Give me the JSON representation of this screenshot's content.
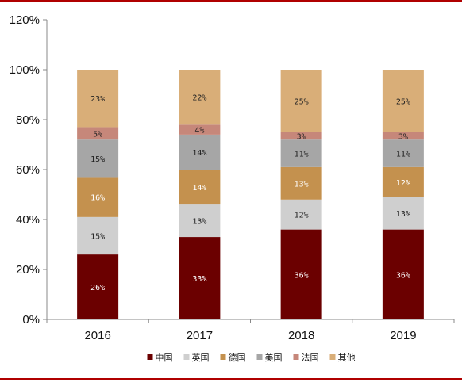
{
  "chart_data": {
    "type": "bar",
    "stacked": true,
    "categories": [
      "2016",
      "2017",
      "2018",
      "2019"
    ],
    "series": [
      {
        "name": "中国",
        "color": "#6b0000",
        "label_color": "#ffffff",
        "values": [
          26,
          33,
          36,
          36
        ]
      },
      {
        "name": "英国",
        "color": "#cfcfcf",
        "label_color": "#222222",
        "values": [
          15,
          13,
          12,
          13
        ]
      },
      {
        "name": "德国",
        "color": "#c4914e",
        "label_color": "#ffffff",
        "values": [
          16,
          14,
          13,
          12
        ]
      },
      {
        "name": "美国",
        "color": "#a6a6a6",
        "label_color": "#222222",
        "values": [
          15,
          14,
          11,
          11
        ]
      },
      {
        "name": "法国",
        "color": "#c6877a",
        "label_color": "#222222",
        "values": [
          5,
          4,
          3,
          3
        ]
      },
      {
        "name": "其他",
        "color": "#d9ae78",
        "label_color": "#222222",
        "values": [
          23,
          22,
          25,
          25
        ]
      }
    ],
    "yticks": [
      "0%",
      "20%",
      "40%",
      "60%",
      "80%",
      "100%",
      "120%"
    ],
    "ylim": [
      0,
      120
    ],
    "legend_position": "bottom",
    "grid": false,
    "title": "",
    "xlabel": "",
    "ylabel": ""
  },
  "colors": {
    "rule": "#b00000",
    "axis": "#888888"
  }
}
